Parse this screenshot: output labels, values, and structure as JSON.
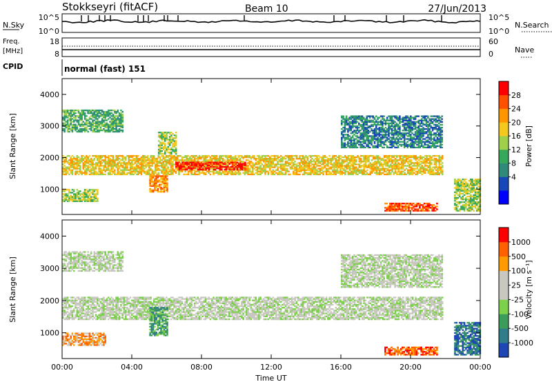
{
  "header": {
    "station": "Stokkseyri (fitACF)",
    "beam": "Beam 10",
    "date": "27/Jun/2013"
  },
  "noise_panel": {
    "left_label": "N.Sky",
    "right_label": "N.Search",
    "left_ticks": [
      "10^5",
      "10^0"
    ],
    "right_ticks": [
      "10^5",
      "10^0"
    ]
  },
  "freq_panel": {
    "left_label": "Freq.",
    "left_unit": "[MHz]",
    "right_label": "Nave",
    "left_ticks": [
      "18",
      "8"
    ],
    "right_ticks": [
      "60",
      "0"
    ]
  },
  "cpid": {
    "label": "CPID",
    "value": "normal (fast) 151"
  },
  "chart_data": [
    {
      "type": "heatmap",
      "name": "power",
      "ylabel": "Slant Range [km]",
      "yticks": [
        "4000",
        "3000",
        "2000",
        "1000"
      ],
      "ylim": [
        200,
        4500
      ],
      "colorbar_label": "Power [dB]",
      "colorbar_ticks": [
        "28",
        "24",
        "20",
        "16",
        "12",
        "8",
        "4"
      ],
      "colorbar_colors": [
        "#0000ff",
        "#1848b8",
        "#2f8a7a",
        "#36a85c",
        "#9fd04c",
        "#f4c81c",
        "#ff9600",
        "#ff5000",
        "#ff0000"
      ],
      "bands": [
        {
          "t0": 0.0,
          "t1": 21.8,
          "r0": 1450,
          "r1": 2050,
          "level": 5
        },
        {
          "t0": 6.5,
          "t1": 10.5,
          "r0": 1600,
          "r1": 1850,
          "level": 8
        },
        {
          "t0": 0.0,
          "t1": 3.5,
          "r0": 2800,
          "r1": 3500,
          "level": 3
        },
        {
          "t0": 16.0,
          "t1": 21.8,
          "r0": 2300,
          "r1": 3300,
          "level": 2
        },
        {
          "t0": 0.0,
          "t1": 2.0,
          "r0": 600,
          "r1": 1000,
          "level": 4
        },
        {
          "t0": 5.0,
          "t1": 6.0,
          "r0": 900,
          "r1": 1400,
          "level": 6
        },
        {
          "t0": 5.5,
          "t1": 6.5,
          "r0": 2100,
          "r1": 2800,
          "level": 4
        },
        {
          "t0": 18.5,
          "t1": 21.5,
          "r0": 300,
          "r1": 550,
          "level": 7
        },
        {
          "t0": 22.5,
          "t1": 24.0,
          "r0": 300,
          "r1": 1300,
          "level": 4
        }
      ]
    },
    {
      "type": "heatmap",
      "name": "velocity",
      "ylabel": "Slant Range [km]",
      "yticks": [
        "4000",
        "3000",
        "2000",
        "1000"
      ],
      "ylim": [
        200,
        4500
      ],
      "xticks": [
        "00:00",
        "04:00",
        "08:00",
        "12:00",
        "16:00",
        "20:00",
        "00:00"
      ],
      "xlabel": "Time UT",
      "colorbar_label": "Velocity [m s⁻¹]",
      "colorbar_ticks": [
        "1000",
        "500",
        "100",
        "25",
        "-25",
        "-100",
        "-500",
        "-1000"
      ],
      "colorbar_colors": [
        "#1e46b4",
        "#2f7d8a",
        "#3c9c5a",
        "#7cd04a",
        "#c8c8c0",
        "#c8c8c0",
        "#ff9a00",
        "#ff6000",
        "#ff0000"
      ],
      "bands": [
        {
          "t0": 0.0,
          "t1": 21.8,
          "r0": 1400,
          "r1": 2100,
          "level": 4
        },
        {
          "t0": 0.0,
          "t1": 3.5,
          "r0": 2900,
          "r1": 3500,
          "level": 4
        },
        {
          "t0": 16.0,
          "t1": 21.8,
          "r0": 2400,
          "r1": 3400,
          "level": 4
        },
        {
          "t0": 5.0,
          "t1": 6.0,
          "r0": 900,
          "r1": 1800,
          "level": 2
        },
        {
          "t0": 0.0,
          "t1": 2.5,
          "r0": 600,
          "r1": 1000,
          "level": 6
        },
        {
          "t0": 18.5,
          "t1": 21.5,
          "r0": 300,
          "r1": 550,
          "level": 7
        },
        {
          "t0": 22.5,
          "t1": 24.0,
          "r0": 300,
          "r1": 1300,
          "level": 1
        }
      ]
    }
  ]
}
